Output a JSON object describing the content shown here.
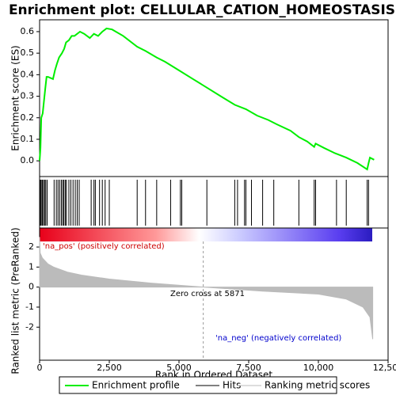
{
  "chart_data": [
    {
      "type": "line",
      "title": "Enrichment plot: CELLULAR_CATION_HOMEOSTASIS",
      "ylabel": "Enrichment score (ES)",
      "xlim": [
        0,
        12500
      ],
      "ylim": [
        -0.073,
        0.655
      ],
      "yticks": [
        {
          "value": 0,
          "label": "0.0"
        },
        0.1,
        0.2,
        0.3,
        0.4,
        0.5,
        0.6
      ],
      "series": [
        {
          "name": "Enrichment profile",
          "color": "#00ee00",
          "x": [
            0,
            30,
            60,
            110,
            150,
            200,
            250,
            300,
            480,
            550,
            620,
            700,
            800,
            880,
            950,
            1050,
            1150,
            1250,
            1350,
            1450,
            1600,
            1800,
            1950,
            2100,
            2250,
            2400,
            2600,
            3000,
            3500,
            3800,
            4200,
            4500,
            5000,
            5500,
            6000,
            6500,
            7000,
            7400,
            7800,
            8200,
            8500,
            9000,
            9300,
            9600,
            9850,
            9900,
            10200,
            10600,
            10800,
            11000,
            11400,
            11750,
            11800,
            11850,
            12000
          ],
          "values": [
            0,
            0.06,
            0.2,
            0.22,
            0.27,
            0.33,
            0.39,
            0.39,
            0.38,
            0.42,
            0.45,
            0.48,
            0.5,
            0.52,
            0.55,
            0.56,
            0.58,
            0.58,
            0.59,
            0.6,
            0.59,
            0.57,
            0.59,
            0.58,
            0.6,
            0.615,
            0.61,
            0.58,
            0.53,
            0.51,
            0.48,
            0.46,
            0.42,
            0.38,
            0.34,
            0.3,
            0.26,
            0.24,
            0.21,
            0.19,
            0.17,
            0.14,
            0.11,
            0.09,
            0.065,
            0.08,
            0.06,
            0.035,
            0.025,
            0.015,
            -0.01,
            -0.04,
            -0.01,
            0.015,
            0.005
          ]
        }
      ],
      "legend": [
        "Enrichment profile",
        "Hits",
        "Ranking metric scores"
      ]
    },
    {
      "type": "hits",
      "xlim": [
        0,
        12500
      ],
      "x": [
        30,
        60,
        100,
        140,
        180,
        220,
        270,
        520,
        600,
        660,
        720,
        780,
        830,
        870,
        920,
        960,
        1050,
        1120,
        1200,
        1280,
        1350,
        1420,
        1850,
        1950,
        2000,
        2150,
        2250,
        2350,
        2500,
        3500,
        3800,
        4200,
        4700,
        5050,
        5100,
        6000,
        7000,
        7100,
        7350,
        7400,
        7600,
        8000,
        8400,
        9300,
        9850,
        9900,
        10650,
        11000,
        11750,
        11800
      ]
    },
    {
      "type": "area",
      "ylabel": "Ranked list metric (PreRanked)",
      "xlabel": "Rank in Ordered Dataset",
      "xlim": [
        0,
        12500
      ],
      "ylim": [
        -3.65,
        2.95
      ],
      "yticks": [
        2,
        1,
        0,
        -1,
        -2
      ],
      "xticks": [
        0,
        {
          "value": 2500,
          "label": "2,500"
        },
        {
          "value": 5000,
          "label": "5,000"
        },
        {
          "value": 7500,
          "label": "7,500"
        },
        {
          "value": 10000,
          "label": "10,000"
        },
        {
          "value": 12500,
          "label": "12,500"
        }
      ],
      "series": [
        {
          "name": "Ranking metric scores",
          "color": "#bbbbbb",
          "x": [
            0,
            20,
            100,
            300,
            500,
            1000,
            1500,
            2500,
            4000,
            5871,
            8000,
            10000,
            11000,
            11600,
            11850,
            11950
          ],
          "values": [
            2.5,
            1.7,
            1.45,
            1.15,
            1.0,
            0.75,
            0.6,
            0.4,
            0.2,
            0,
            -0.2,
            -0.35,
            -0.6,
            -1.0,
            -1.5,
            -2.6
          ]
        }
      ],
      "zero_cross": 5871,
      "annotations": [
        "'na_pos' (positively correlated)",
        "Zero cross at 5871",
        "'na_neg' (negatively correlated)"
      ]
    }
  ]
}
